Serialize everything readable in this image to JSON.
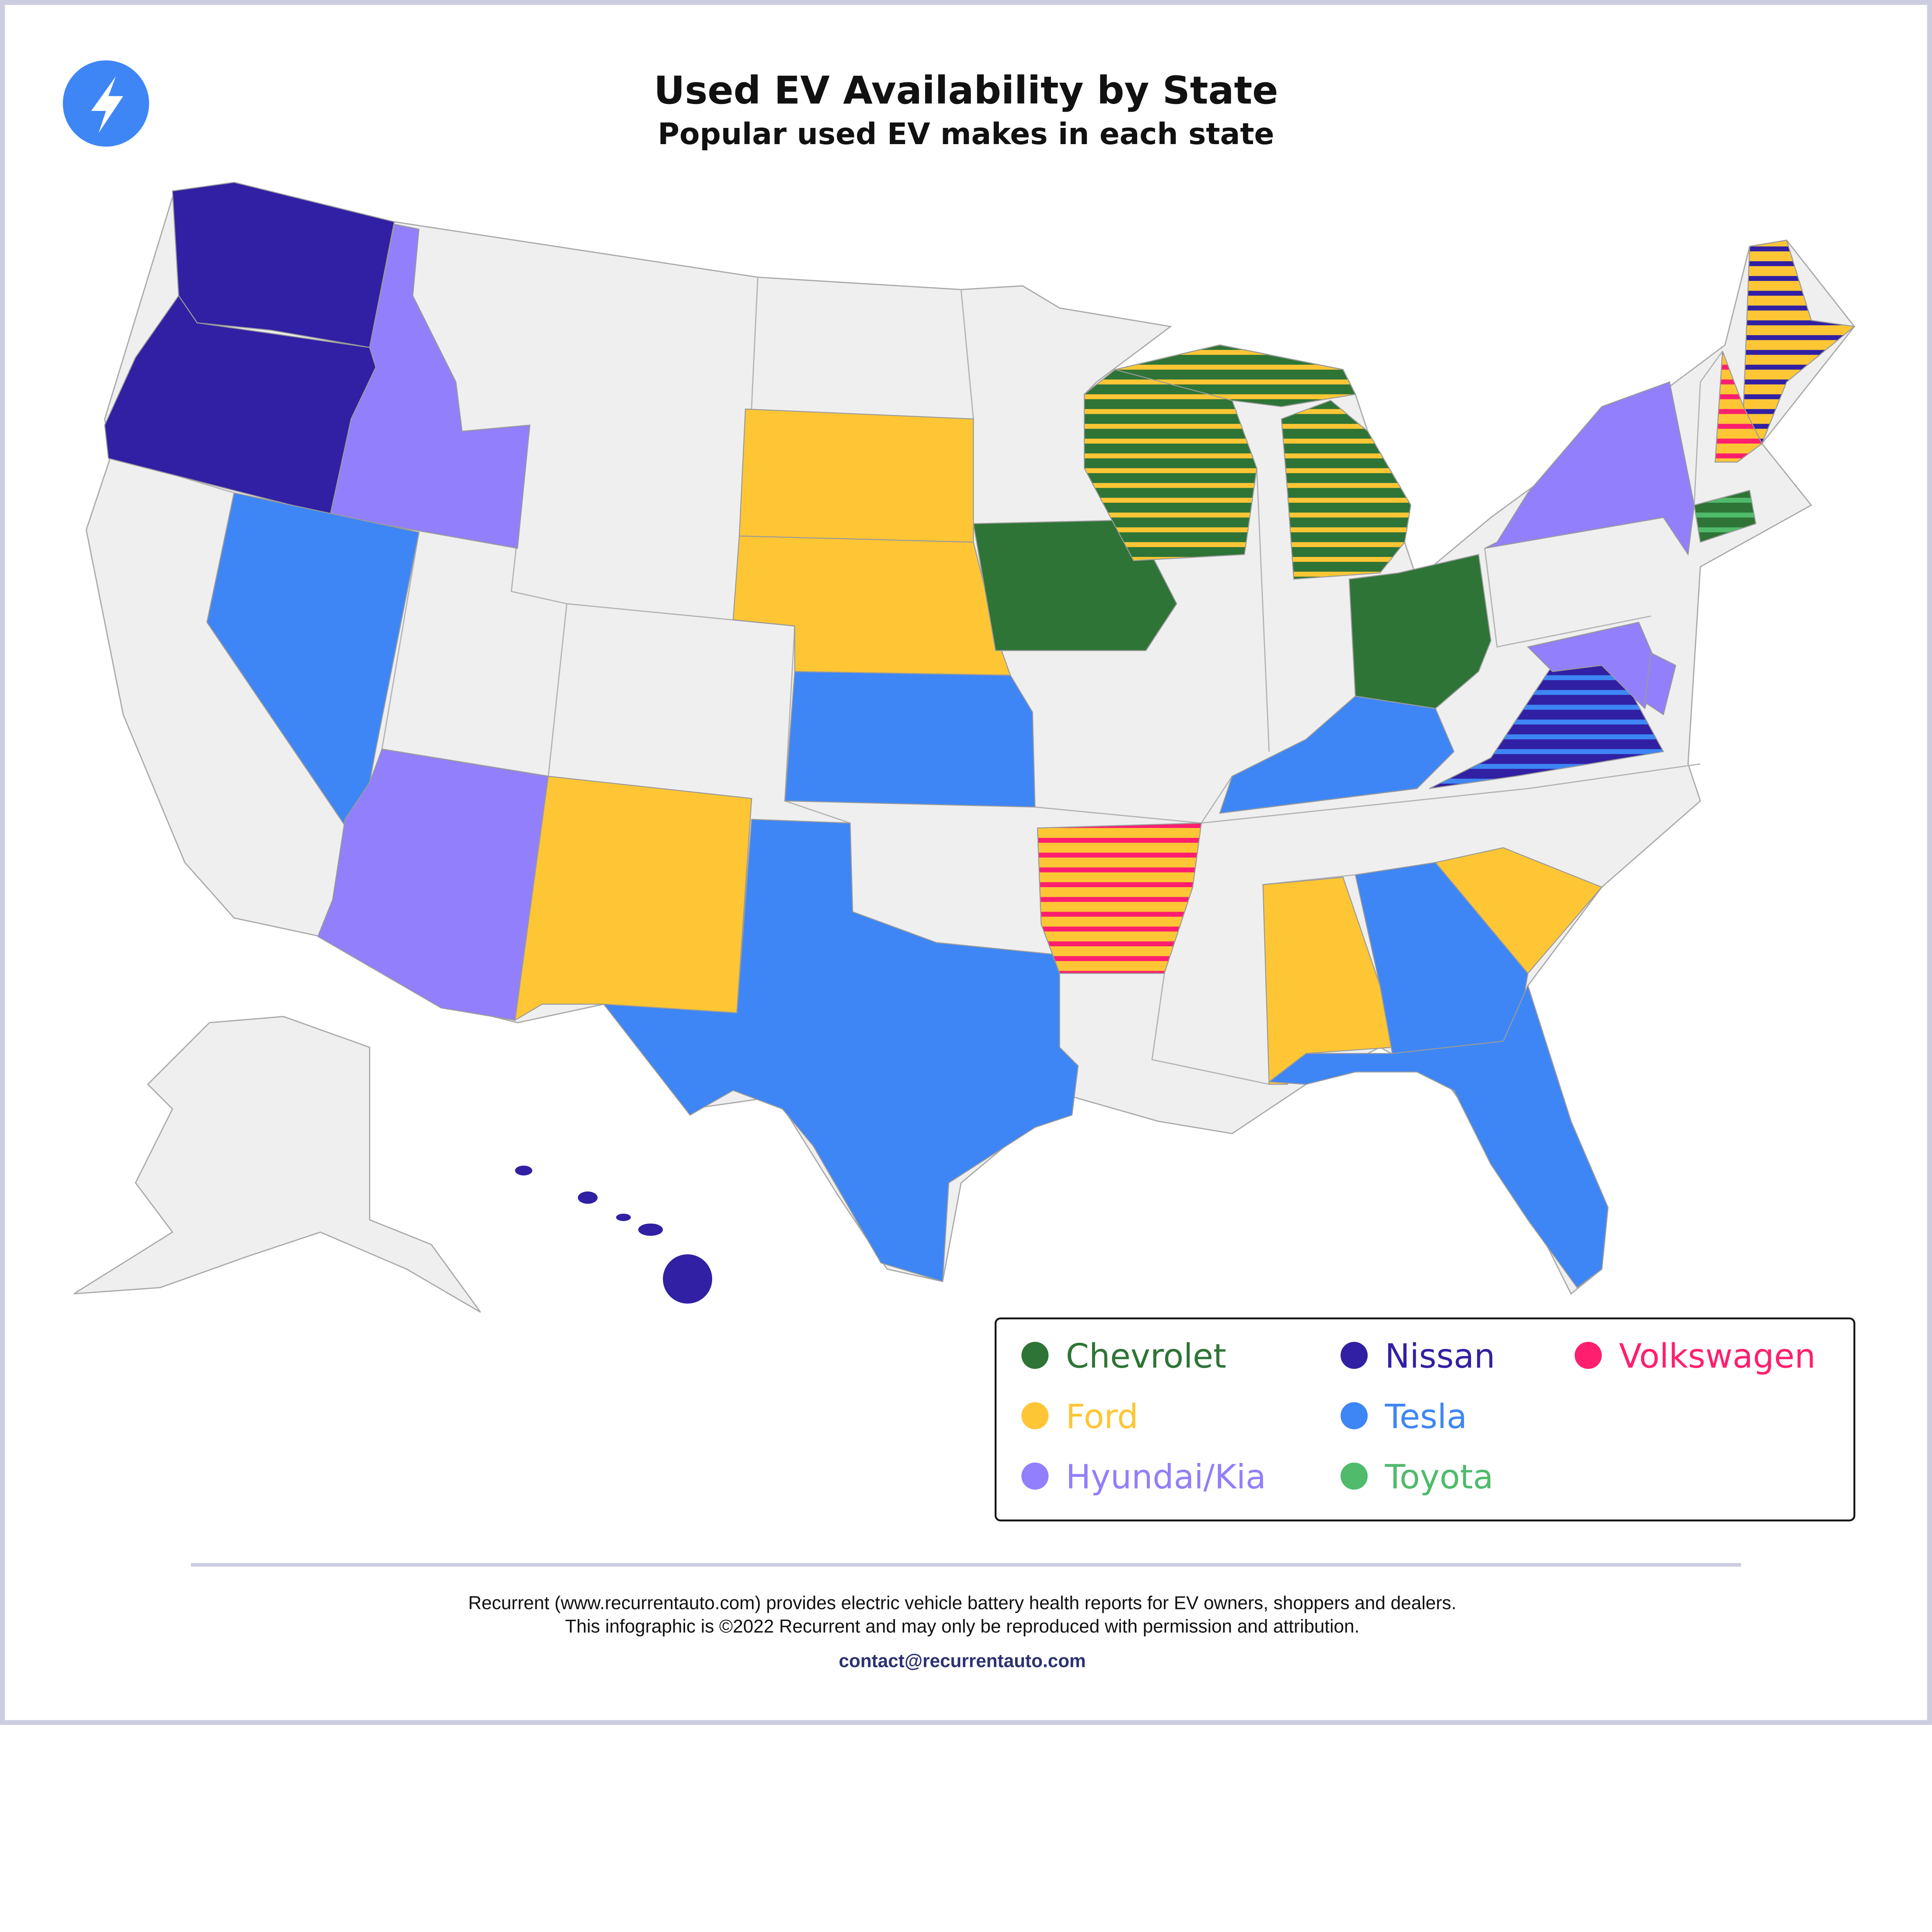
{
  "header": {
    "title": "Used EV Availability by State",
    "subtitle": "Popular used EV makes in each state",
    "logo_icon": "lightning-bolt-icon"
  },
  "colors": {
    "Chevrolet": "#2e7436",
    "Ford": "#fec635",
    "Hyundai/Kia": "#927ffb",
    "Nissan": "#3120a3",
    "Tesla": "#3e86f6",
    "Toyota": "#4fbb6b",
    "Volkswagen": "#ff1f6e",
    "none": "#efefef"
  },
  "legend": {
    "items": [
      {
        "label": "Chevrolet"
      },
      {
        "label": "Nissan"
      },
      {
        "label": "Volkswagen"
      },
      {
        "label": "Ford"
      },
      {
        "label": "Tesla"
      },
      {
        "label": "Hyundai/Kia"
      },
      {
        "label": "Toyota"
      }
    ]
  },
  "states": [
    {
      "state": "WA",
      "makes": [
        "Nissan"
      ]
    },
    {
      "state": "OR",
      "makes": [
        "Nissan"
      ]
    },
    {
      "state": "ID",
      "makes": [
        "Hyundai/Kia"
      ]
    },
    {
      "state": "NV",
      "makes": [
        "Tesla"
      ]
    },
    {
      "state": "AZ",
      "makes": [
        "Hyundai/Kia"
      ]
    },
    {
      "state": "NM",
      "makes": [
        "Ford"
      ]
    },
    {
      "state": "TX",
      "makes": [
        "Tesla"
      ]
    },
    {
      "state": "KS",
      "makes": [
        "Tesla"
      ]
    },
    {
      "state": "NE",
      "makes": [
        "Ford"
      ]
    },
    {
      "state": "SD",
      "makes": [
        "Ford"
      ]
    },
    {
      "state": "IA",
      "makes": [
        "Chevrolet"
      ]
    },
    {
      "state": "WI",
      "makes": [
        "Chevrolet",
        "Ford"
      ]
    },
    {
      "state": "MI",
      "makes": [
        "Chevrolet",
        "Ford"
      ]
    },
    {
      "state": "OH",
      "makes": [
        "Chevrolet"
      ]
    },
    {
      "state": "KY",
      "makes": [
        "Tesla"
      ]
    },
    {
      "state": "VA",
      "makes": [
        "Nissan",
        "Tesla"
      ]
    },
    {
      "state": "MD",
      "makes": [
        "Hyundai/Kia"
      ]
    },
    {
      "state": "NJ",
      "makes": [
        "Hyundai/Kia"
      ]
    },
    {
      "state": "NY",
      "makes": [
        "Hyundai/Kia"
      ]
    },
    {
      "state": "CT",
      "makes": [
        "Chevrolet",
        "Toyota"
      ]
    },
    {
      "state": "ME",
      "makes": [
        "Ford",
        "Nissan"
      ]
    },
    {
      "state": "NH",
      "makes": [
        "Ford",
        "Volkswagen"
      ]
    },
    {
      "state": "AR",
      "makes": [
        "Ford",
        "Volkswagen"
      ]
    },
    {
      "state": "AL",
      "makes": [
        "Ford"
      ]
    },
    {
      "state": "GA",
      "makes": [
        "Tesla"
      ]
    },
    {
      "state": "SC",
      "makes": [
        "Ford"
      ]
    },
    {
      "state": "FL",
      "makes": [
        "Tesla"
      ]
    },
    {
      "state": "HI",
      "makes": [
        "Nissan"
      ]
    }
  ],
  "footer": {
    "line1": "Recurrent (www.recurrentauto.com) provides electric vehicle battery health reports for EV owners, shoppers and dealers.",
    "line2": "This infographic is ©2022 Recurrent and may only be reproduced with permission and attribution.",
    "contact": "contact@recurrentauto.com"
  }
}
